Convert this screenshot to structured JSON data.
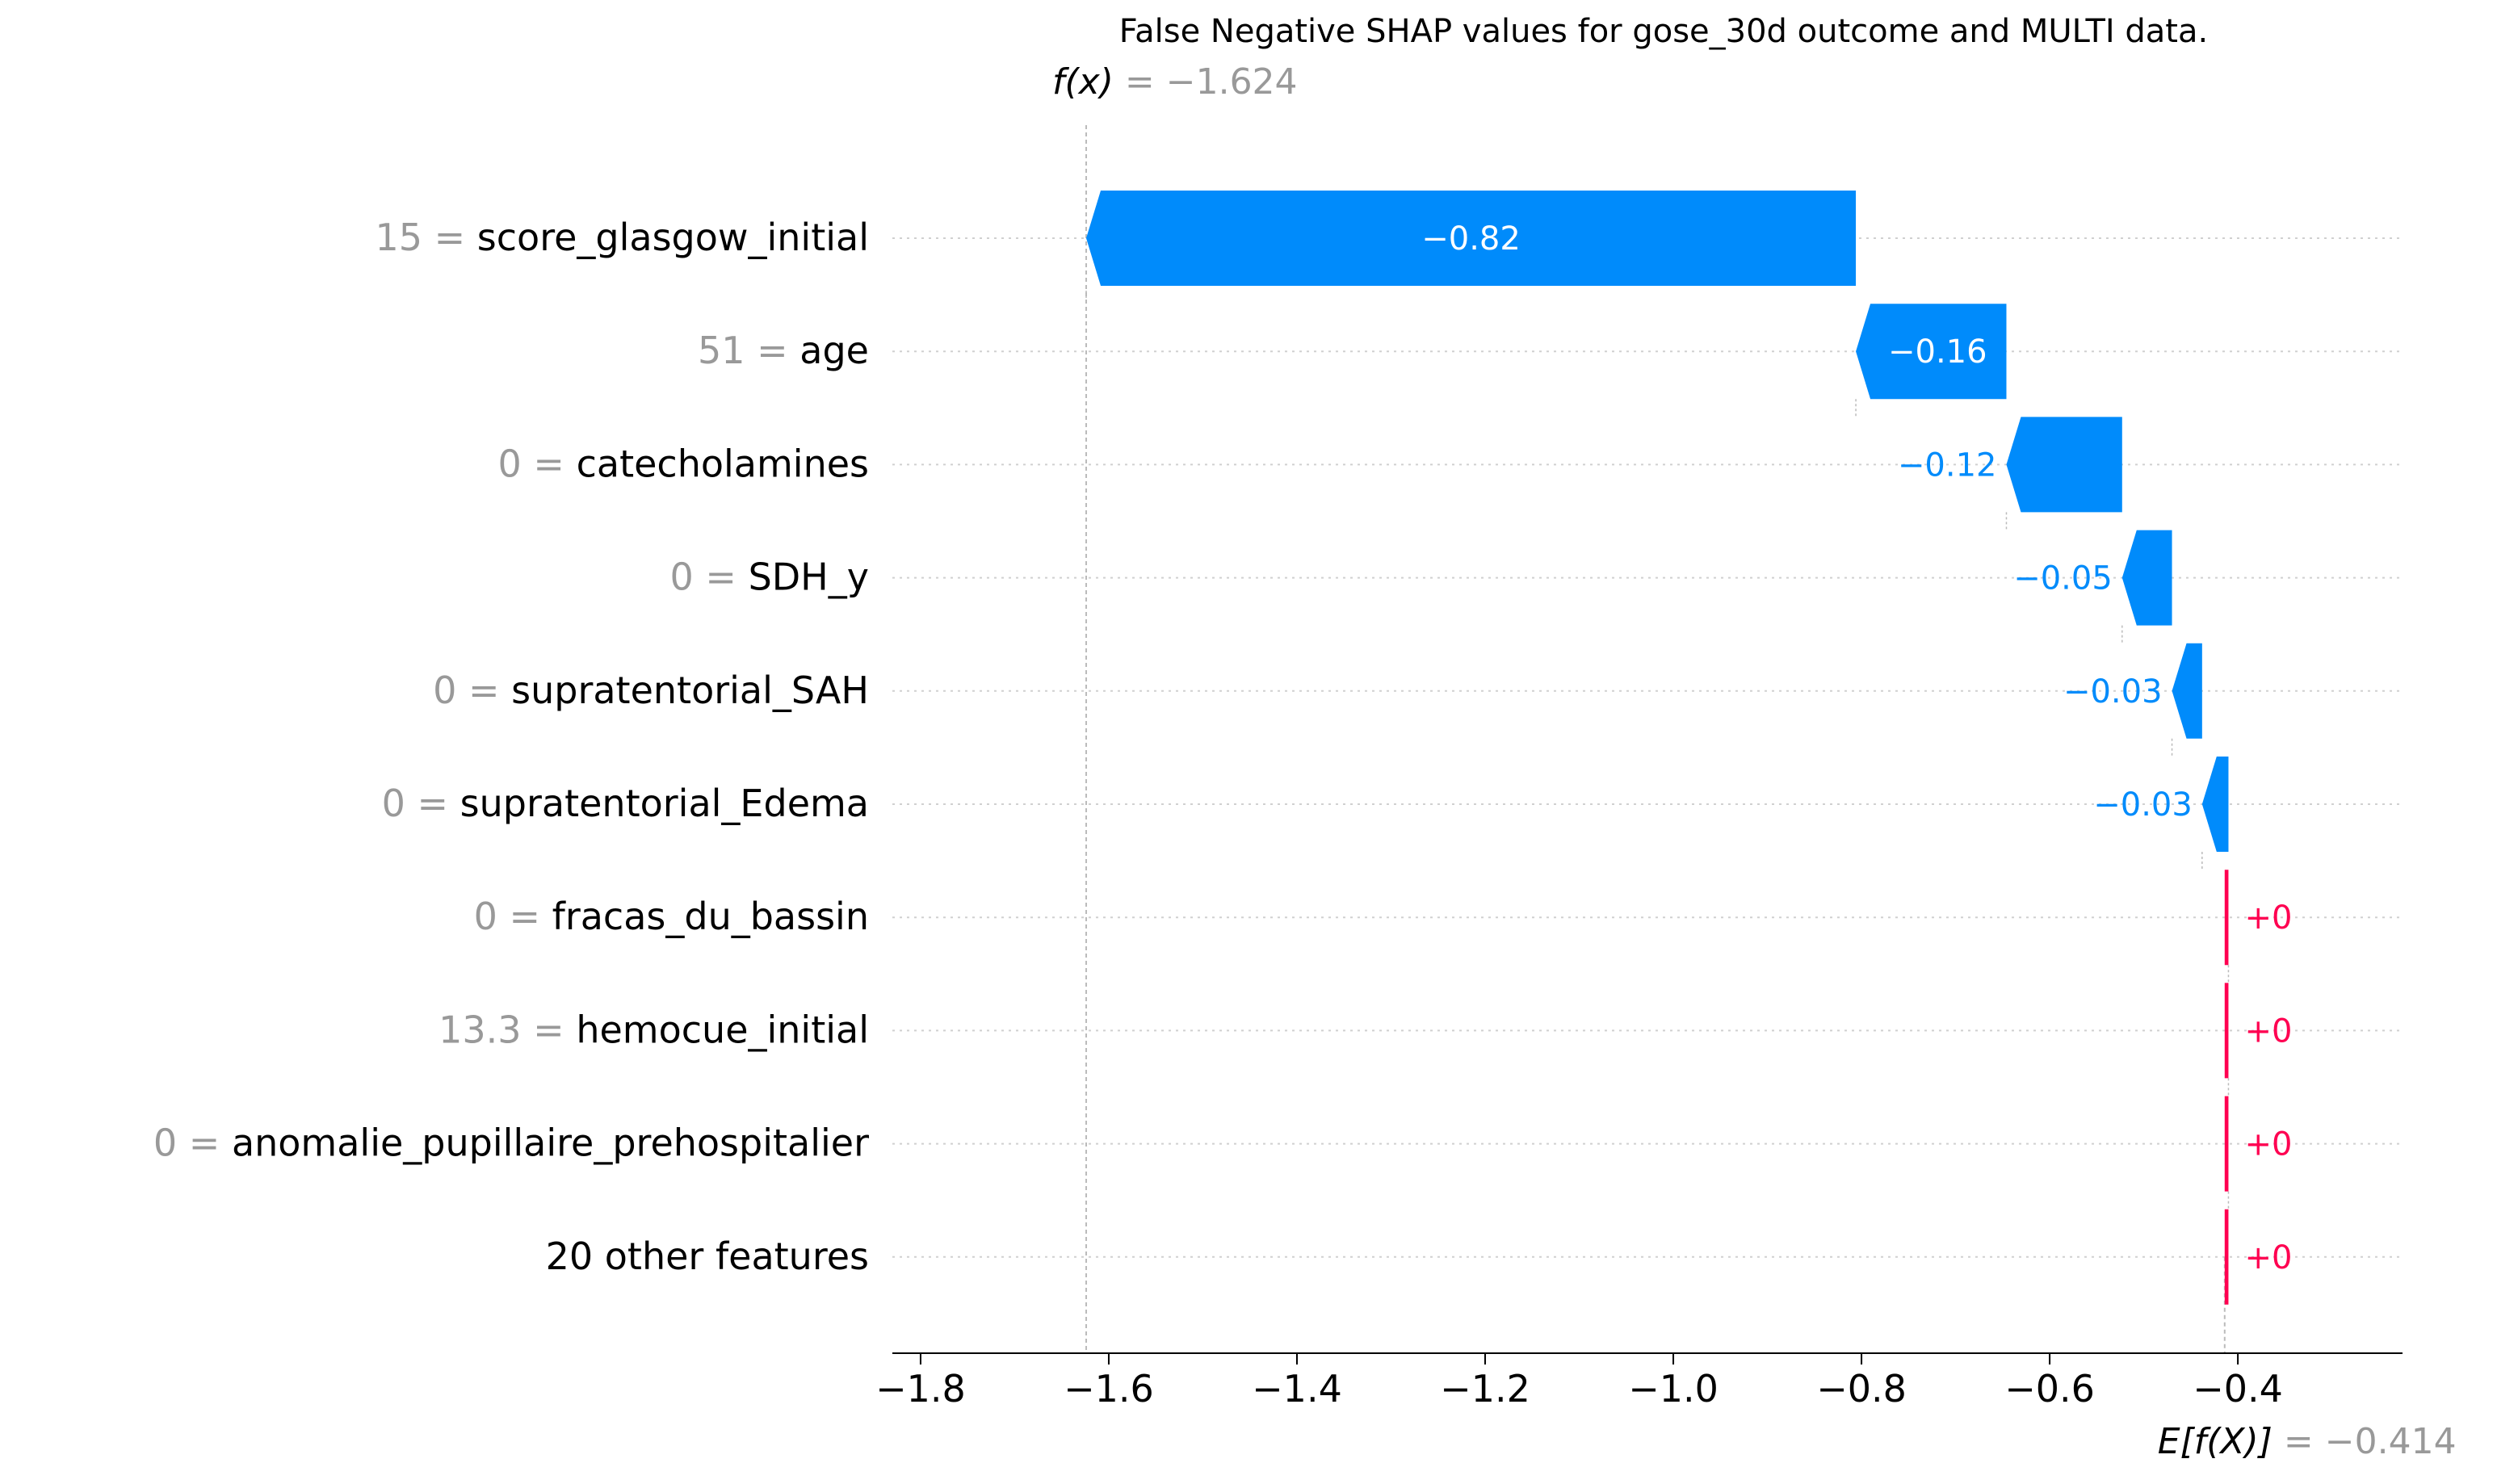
{
  "chart_data": {
    "type": "waterfall",
    "title": "False Negative SHAP values for gose_30d outcome and MULTI data.",
    "fx": {
      "label": "f(x)",
      "eq": " = ",
      "value_text": "−1.624",
      "value": -1.624
    },
    "base": {
      "label": "E[f(X)]",
      "eq": " = ",
      "value_text": "−0.414",
      "value": -0.414
    },
    "xlim": [
      -1.83,
      -0.225
    ],
    "xticks": [
      -1.8,
      -1.6,
      -1.4,
      -1.2,
      -1.0,
      -0.8,
      -0.6,
      -0.4
    ],
    "xtick_labels": [
      "−1.8",
      "−1.6",
      "−1.4",
      "−1.2",
      "−1.0",
      "−0.8",
      "−0.6",
      "−0.4"
    ],
    "features": [
      {
        "value_text": "15",
        "name": "score_glasgow_initial",
        "start": -0.806,
        "shap": -0.818,
        "label": "−0.82"
      },
      {
        "value_text": "51",
        "name": "age",
        "start": -0.646,
        "shap": -0.16,
        "label": "−0.16"
      },
      {
        "value_text": "0",
        "name": "catecholamines",
        "start": -0.523,
        "shap": -0.123,
        "label": "−0.12"
      },
      {
        "value_text": "0",
        "name": "SDH_y",
        "start": -0.47,
        "shap": -0.053,
        "label": "−0.05"
      },
      {
        "value_text": "0",
        "name": "supratentorial_SAH",
        "start": -0.438,
        "shap": -0.032,
        "label": "−0.03"
      },
      {
        "value_text": "0",
        "name": "supratentorial_Edema",
        "start": -0.41,
        "shap": -0.028,
        "label": "−0.03"
      },
      {
        "value_text": "0",
        "name": "fracas_du_bassin",
        "start": -0.414,
        "shap": 0.004,
        "label": "+0"
      },
      {
        "value_text": "13.3",
        "name": "hemocue_initial",
        "start": -0.414,
        "shap": 0.004,
        "label": "+0"
      },
      {
        "value_text": "0",
        "name": "anomalie_pupillaire_prehospitalier",
        "start": -0.414,
        "shap": 0.004,
        "label": "+0"
      },
      {
        "value_text": "",
        "name": "20 other features",
        "start": -0.414,
        "shap": 0.004,
        "label": "+0"
      }
    ],
    "colors": {
      "negative": "#008bfb",
      "positive": "#ff0051",
      "value_gray": "#999999",
      "text": "#000000"
    }
  }
}
